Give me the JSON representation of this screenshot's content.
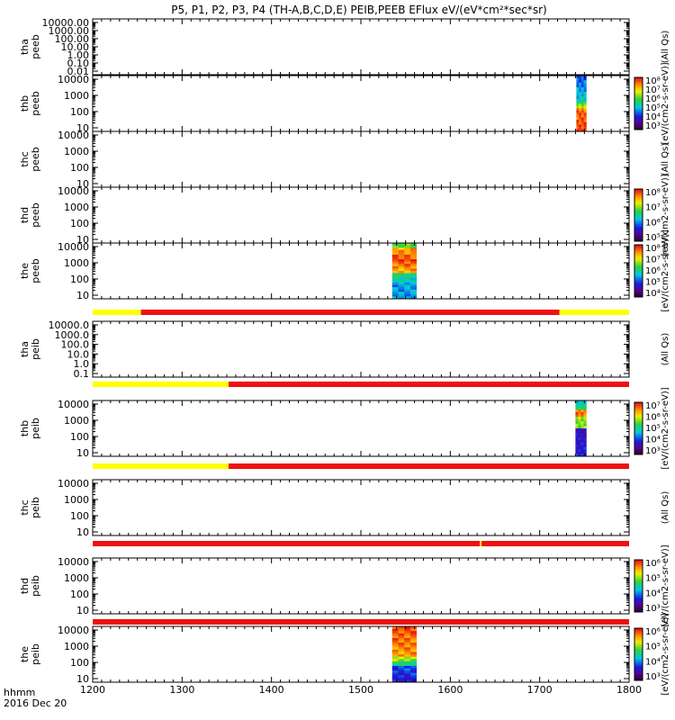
{
  "title": "P5, P1, P2, P3, P4 (TH-A,B,C,D,E) PEIB,PEEB EFlux eV/(eV*cm²*sec*sr)",
  "footer": {
    "line1": "hhmm",
    "line2": "2016 Dec 20"
  },
  "colors": {
    "red": "#ee1111",
    "yellow": "#ffff00",
    "frame": "#000000"
  },
  "chart_data": {
    "type": "heatmap",
    "x_ticks": [
      "1200",
      "1300",
      "1400",
      "1500",
      "1600",
      "1700",
      "1800"
    ],
    "xlim": [
      1200,
      1800
    ],
    "panels": [
      {
        "label": [
          "tha",
          "peeb"
        ],
        "yticks": [
          "10000.00",
          "1000.00",
          "100.00",
          "10.00",
          "1.00",
          "0.10",
          "0.01"
        ],
        "log": true,
        "colorbar": false,
        "side": "(All Qs)",
        "patches": [],
        "status_below": null
      },
      {
        "label": [
          "thb",
          "peeb"
        ],
        "yticks": [
          "10000",
          "1000",
          "100",
          "10"
        ],
        "log": true,
        "colorbar": true,
        "cb_ticks": [
          "10⁸",
          "10⁷",
          "10⁶",
          "10⁵",
          "10⁴",
          "10³"
        ],
        "side": "[eV/(cm2-s-sr-eV)]",
        "patches": [
          {
            "x0": 1741,
            "x1": 1752,
            "kind": "thb"
          }
        ],
        "status_below": null
      },
      {
        "label": [
          "thc",
          "peeb"
        ],
        "yticks": [
          "10000",
          "1000",
          "100",
          "10"
        ],
        "log": true,
        "colorbar": false,
        "side": "(All Qs)",
        "patches": [],
        "status_below": null
      },
      {
        "label": [
          "thd",
          "peeb"
        ],
        "yticks": [
          "10000",
          "1000",
          "100",
          "10"
        ],
        "log": true,
        "colorbar": true,
        "cb_ticks": [
          "10⁸",
          "10⁷",
          "10⁶",
          "10⁵"
        ],
        "side": "[eV/(cm2-s-sr-eV)]",
        "patches": [],
        "status_below": null
      },
      {
        "label": [
          "the",
          "peeb"
        ],
        "yticks": [
          "10000",
          "1000",
          "100",
          "10"
        ],
        "log": true,
        "colorbar": true,
        "cb_ticks": [
          "10⁸",
          "10⁷",
          "10⁶",
          "10⁵",
          "10⁴"
        ],
        "side": "[eV/(cm2-s-sr-eV)]",
        "patches": [
          {
            "x0": 1535,
            "x1": 1562,
            "kind": "the"
          }
        ],
        "status_below": [
          {
            "x0": 1200,
            "x1": 1254,
            "c": "yellow"
          },
          {
            "x0": 1254,
            "x1": 1722,
            "c": "red"
          },
          {
            "x0": 1722,
            "x1": 1800,
            "c": "yellow"
          }
        ]
      },
      {
        "label": [
          "tha",
          "peib"
        ],
        "yticks": [
          "10000.0",
          "1000.0",
          "100.0",
          "10.0",
          "1.0",
          "0.1"
        ],
        "log": true,
        "colorbar": false,
        "side": "(All Qs)",
        "patches": [],
        "status_below": [
          {
            "x0": 1200,
            "x1": 1352,
            "c": "yellow"
          },
          {
            "x0": 1352,
            "x1": 1800,
            "c": "red"
          }
        ]
      },
      {
        "label": [
          "thb",
          "peib"
        ],
        "yticks": [
          "10000",
          "1000",
          "100",
          "10"
        ],
        "log": true,
        "colorbar": true,
        "cb_ticks": [
          "10⁷",
          "10⁶",
          "10⁵",
          "10⁴",
          "10³"
        ],
        "side": "[eV/(cm2-s-sr-eV)]",
        "patches": [
          {
            "x0": 1740,
            "x1": 1752,
            "kind": "thbi"
          }
        ],
        "status_below": [
          {
            "x0": 1200,
            "x1": 1352,
            "c": "yellow"
          },
          {
            "x0": 1352,
            "x1": 1800,
            "c": "red"
          }
        ]
      },
      {
        "label": [
          "thc",
          "peib"
        ],
        "yticks": [
          "10000",
          "1000",
          "100",
          "10"
        ],
        "log": true,
        "colorbar": false,
        "side": "(All Qs)",
        "patches": [],
        "status_below": [
          {
            "x0": 1200,
            "x1": 1633,
            "c": "red"
          },
          {
            "x0": 1633,
            "x1": 1635,
            "c": "yellow"
          },
          {
            "x0": 1635,
            "x1": 1800,
            "c": "red"
          }
        ]
      },
      {
        "label": [
          "thd",
          "peib"
        ],
        "yticks": [
          "10000",
          "1000",
          "100",
          "10"
        ],
        "log": true,
        "colorbar": true,
        "cb_ticks": [
          "10⁶",
          "10⁵",
          "10⁴",
          "10³"
        ],
        "side": "[eV/(cm2-s-sr-eV)]",
        "patches": [],
        "status_below": [
          {
            "x0": 1200,
            "x1": 1800,
            "c": "red"
          }
        ]
      },
      {
        "label": [
          "the",
          "peib"
        ],
        "yticks": [
          "10000",
          "1000",
          "100",
          "10"
        ],
        "log": true,
        "colorbar": true,
        "cb_ticks": [
          "10⁶",
          "10⁵",
          "10⁴",
          "10³"
        ],
        "side": "[eV/(cm2-s-sr-eV)]",
        "patches": [
          {
            "x0": 1535,
            "x1": 1562,
            "kind": "thei"
          }
        ],
        "status_below": null
      }
    ]
  }
}
